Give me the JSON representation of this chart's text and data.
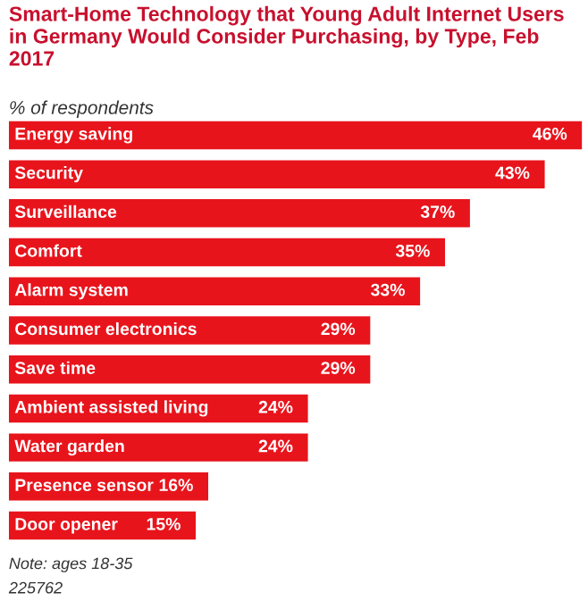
{
  "chart_data": {
    "type": "bar",
    "orientation": "horizontal",
    "title": "Smart-Home Technology that Young Adult Internet Users in Germany Would Consider Purchasing, by Type, Feb 2017",
    "subtitle": "% of respondents",
    "categories": [
      "Energy saving",
      "Security",
      "Surveillance",
      "Comfort",
      "Alarm system",
      "Consumer electronics",
      "Save time",
      "Ambient assisted living",
      "Water garden",
      "Presence sensor",
      "Door opener"
    ],
    "values": [
      46,
      43,
      37,
      35,
      33,
      29,
      29,
      24,
      24,
      16,
      15
    ],
    "value_labels": [
      "46%",
      "43%",
      "37%",
      "35%",
      "33%",
      "29%",
      "29%",
      "24%",
      "24%",
      "16%",
      "15%"
    ],
    "color": "#e8141c",
    "annotations": [
      "Note: ages 18-35",
      "225762"
    ]
  }
}
